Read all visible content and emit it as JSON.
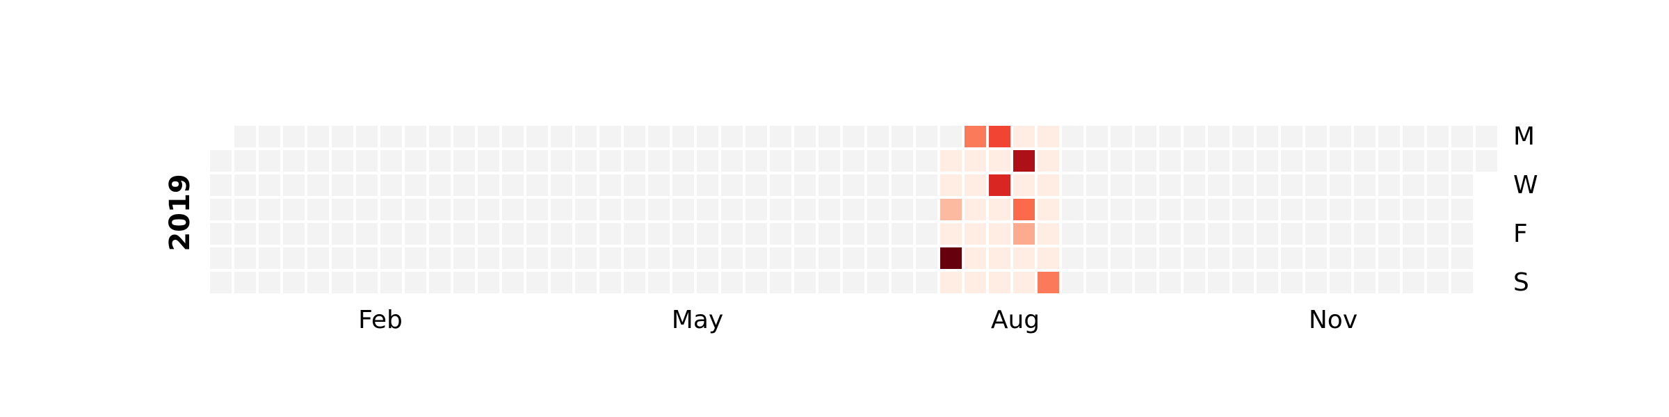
{
  "chart_data": {
    "type": "heatmap",
    "title": "",
    "year": "2019",
    "month_labels": [
      "Feb",
      "May",
      "Aug",
      "Nov"
    ],
    "weekday_labels": [
      "M",
      "W",
      "F",
      "S"
    ],
    "colorscale": "Reds",
    "empty_color": "#f3f3f3",
    "cells": [
      {
        "date": "2019-07-30",
        "value": 0.05
      },
      {
        "date": "2019-07-31",
        "value": 0.05
      },
      {
        "date": "2019-08-01",
        "value": 0.25
      },
      {
        "date": "2019-08-02",
        "value": 0.05
      },
      {
        "date": "2019-08-03",
        "value": 1.0
      },
      {
        "date": "2019-08-04",
        "value": 0.05
      },
      {
        "date": "2019-08-05",
        "value": 0.45
      },
      {
        "date": "2019-08-06",
        "value": 0.05
      },
      {
        "date": "2019-08-07",
        "value": 0.05
      },
      {
        "date": "2019-08-08",
        "value": 0.05
      },
      {
        "date": "2019-08-09",
        "value": 0.05
      },
      {
        "date": "2019-08-10",
        "value": 0.05
      },
      {
        "date": "2019-08-11",
        "value": 0.05
      },
      {
        "date": "2019-08-12",
        "value": 0.6
      },
      {
        "date": "2019-08-13",
        "value": 0.05
      },
      {
        "date": "2019-08-14",
        "value": 0.7
      },
      {
        "date": "2019-08-15",
        "value": 0.05
      },
      {
        "date": "2019-08-16",
        "value": 0.05
      },
      {
        "date": "2019-08-17",
        "value": 0.05
      },
      {
        "date": "2019-08-18",
        "value": 0.05
      },
      {
        "date": "2019-08-19",
        "value": 0.05
      },
      {
        "date": "2019-08-20",
        "value": 0.85
      },
      {
        "date": "2019-08-21",
        "value": 0.05
      },
      {
        "date": "2019-08-22",
        "value": 0.5
      },
      {
        "date": "2019-08-23",
        "value": 0.3
      },
      {
        "date": "2019-08-24",
        "value": 0.05
      },
      {
        "date": "2019-08-25",
        "value": 0.05
      },
      {
        "date": "2019-08-26",
        "value": 0.05
      },
      {
        "date": "2019-08-27",
        "value": 0.05
      },
      {
        "date": "2019-08-28",
        "value": 0.05
      },
      {
        "date": "2019-08-29",
        "value": 0.05
      },
      {
        "date": "2019-08-30",
        "value": 0.05
      },
      {
        "date": "2019-08-31",
        "value": 0.05
      },
      {
        "date": "2019-09-01",
        "value": 0.45
      }
    ]
  }
}
